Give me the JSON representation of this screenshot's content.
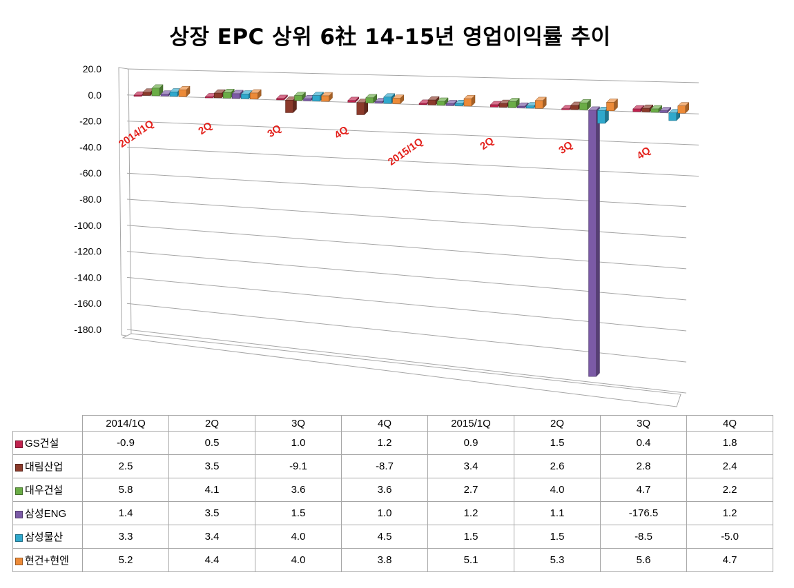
{
  "chart_data": {
    "type": "bar",
    "title": "상장 EPC 상위 6社 14-15년 영업이익률 추이",
    "categories": [
      "2014/1Q",
      "2Q",
      "3Q",
      "4Q",
      "2015/1Q",
      "2Q",
      "3Q",
      "4Q"
    ],
    "yticks": [
      "20.0",
      "0.0",
      "-20.0",
      "-40.0",
      "-60.0",
      "-80.0",
      "-100.0",
      "-120.0",
      "-140.0",
      "-160.0",
      "-180.0"
    ],
    "ylim": [
      -180,
      20
    ],
    "grid": true,
    "legend": "data-table",
    "series": [
      {
        "name": "GS건설",
        "color": "#c0234e",
        "values": [
          -0.9,
          0.5,
          1.0,
          1.2,
          0.9,
          1.5,
          0.4,
          1.8
        ],
        "labels": [
          "-0.9",
          "0.5",
          "1.0",
          "1.2",
          "0.9",
          "1.5",
          "0.4",
          "1.8"
        ]
      },
      {
        "name": "대림산업",
        "color": "#8b3a2b",
        "values": [
          2.5,
          3.5,
          -9.1,
          -8.7,
          3.4,
          2.6,
          2.8,
          2.4
        ],
        "labels": [
          "2.5",
          "3.5",
          "-9.1",
          "-8.7",
          "3.4",
          "2.6",
          "2.8",
          "2.4"
        ]
      },
      {
        "name": "대우건설",
        "color": "#6aac46",
        "values": [
          5.8,
          4.1,
          3.6,
          3.6,
          2.7,
          4.0,
          4.7,
          2.2
        ],
        "labels": [
          "5.8",
          "4.1",
          "3.6",
          "3.6",
          "2.7",
          "4.0",
          "4.7",
          "2.2"
        ]
      },
      {
        "name": "삼성ENG",
        "color": "#7b5aa6",
        "values": [
          1.4,
          3.5,
          1.5,
          1.0,
          1.2,
          1.1,
          -176.5,
          1.2
        ],
        "labels": [
          "1.4",
          "3.5",
          "1.5",
          "1.0",
          "1.2",
          "1.1",
          "-176.5",
          "1.2"
        ]
      },
      {
        "name": "삼성물산",
        "color": "#2fa8cc",
        "values": [
          3.3,
          3.4,
          4.0,
          4.5,
          1.5,
          1.5,
          -8.5,
          -5.0
        ],
        "labels": [
          "3.3",
          "3.4",
          "4.0",
          "4.5",
          "1.5",
          "1.5",
          "-8.5",
          "-5.0"
        ]
      },
      {
        "name": "현건+현엔",
        "color": "#ec8a38",
        "values": [
          5.2,
          4.4,
          4.0,
          3.8,
          5.1,
          5.3,
          5.6,
          4.7
        ],
        "labels": [
          "5.2",
          "4.4",
          "4.0",
          "3.8",
          "5.1",
          "5.3",
          "5.6",
          "4.7"
        ]
      }
    ],
    "colors": {
      "grid": "#a6a6a6",
      "category_label": "#e3211c"
    }
  }
}
